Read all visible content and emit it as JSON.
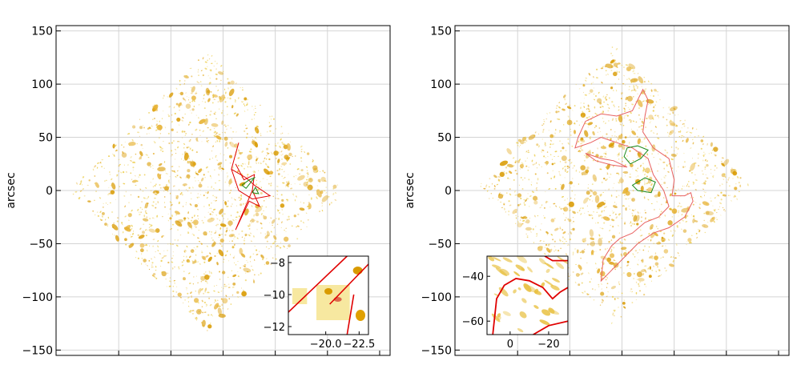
{
  "chart_data": [
    {
      "type": "scatter",
      "title": "",
      "ylabel": "arcsec",
      "xlim": [
        -160,
        160
      ],
      "ylim": [
        -155,
        155
      ],
      "yticks": [
        150,
        100,
        50,
        0,
        -50,
        -100,
        -150
      ],
      "ytick_labels": [
        "150",
        "100",
        "50",
        "0",
        "−50",
        "−100",
        "−150"
      ],
      "grid": true,
      "field_shape": "diamond",
      "critical_curve_color": "#e00000",
      "caustic_color": "#1a8a1a",
      "galaxy_color": "#e0a000",
      "inset": {
        "location": "lower-right",
        "xlim": [
          -17.2,
          -23.2
        ],
        "ylim": [
          -12.5,
          -7.6
        ],
        "xticks": [
          -20.0,
          -22.5
        ],
        "xtick_labels": [
          "−20.0",
          "−22.5"
        ],
        "yticks": [
          -8,
          -10,
          -12
        ],
        "ytick_labels": [
          "−8",
          "−10",
          "−12"
        ]
      }
    },
    {
      "type": "scatter",
      "title": "",
      "ylabel": "arcsec",
      "xlim": [
        -160,
        160
      ],
      "ylim": [
        -155,
        155
      ],
      "yticks": [
        150,
        100,
        50,
        0,
        -50,
        -100,
        -150
      ],
      "ytick_labels": [
        "150",
        "100",
        "50",
        "0",
        "−50",
        "−100",
        "−150"
      ],
      "grid": true,
      "field_shape": "diamond",
      "critical_curve_color": "#e86060",
      "caustic_color": "#1a8a1a",
      "galaxy_color": "#e0a000",
      "inset": {
        "location": "lower-left",
        "xlim": [
          12,
          -30
        ],
        "ylim": [
          -66,
          -31
        ],
        "xticks": [
          0,
          -20
        ],
        "xtick_labels": [
          "0",
          "−20"
        ],
        "yticks": [
          -40,
          -60
        ],
        "ytick_labels": [
          "−40",
          "−60"
        ]
      }
    }
  ]
}
